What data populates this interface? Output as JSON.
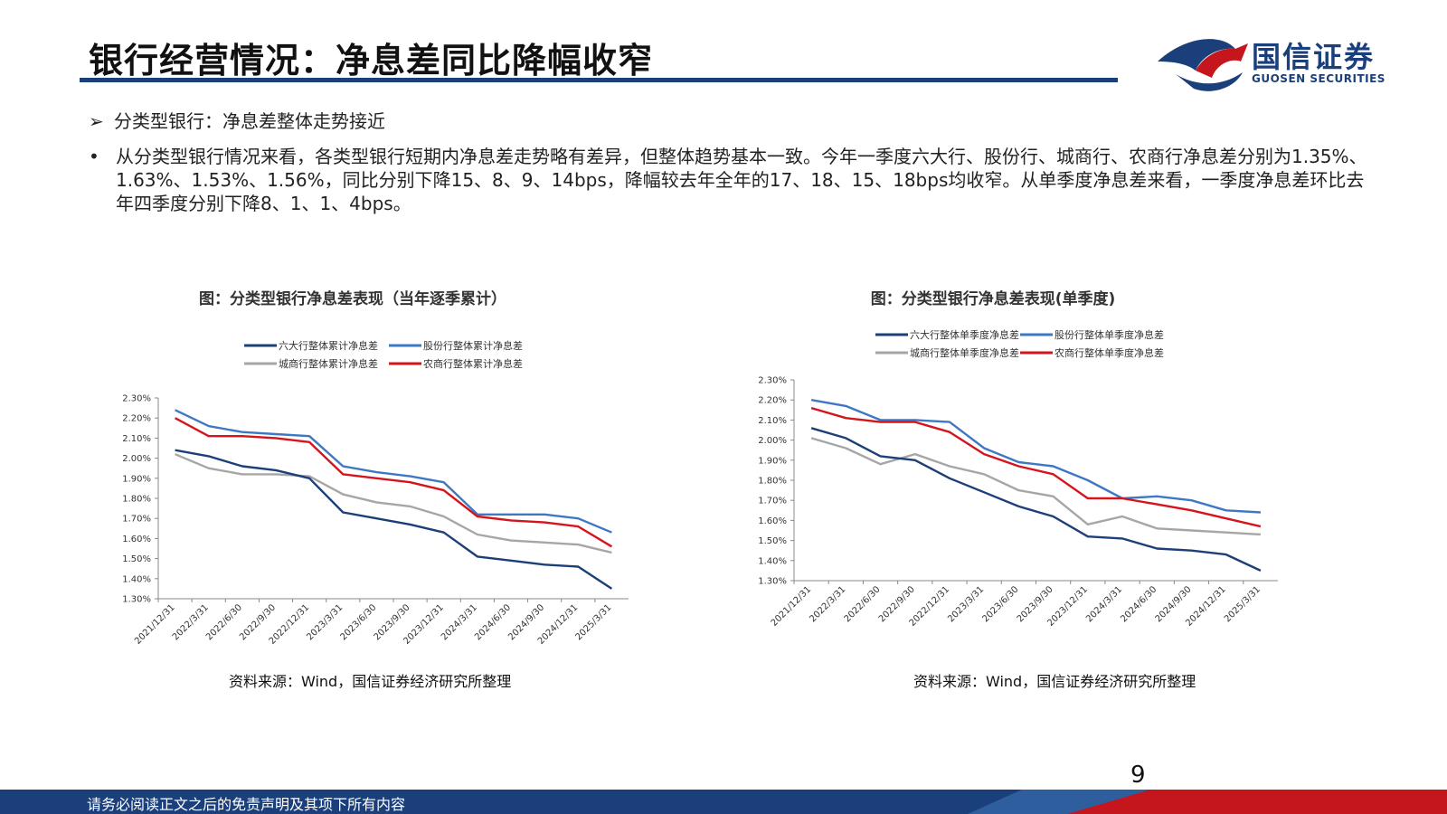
{
  "header": {
    "title": "银行经营情况：净息差同比降幅收窄",
    "logo_cn": "国信证券",
    "logo_en": "GUOSEN SECURITIES"
  },
  "bullets": {
    "b1_marker": "➢",
    "b1": "分类型银行：净息差整体走势接近",
    "b2_marker": "•",
    "b2": "从分类型银行情况来看，各类型银行短期内净息差走势略有差异，但整体趋势基本一致。今年一季度六大行、股份行、城商行、农商行净息差分别为1.35%、1.63%、1.53%、1.56%，同比分别下降15、8、9、14bps，降幅较去年全年的17、18、15、18bps均收窄。从单季度净息差来看，一季度净息差环比去年四季度分别下降8、1、1、4bps。"
  },
  "colors": {
    "navy": "#1a3f7a",
    "red": "#c4161c",
    "s1": "#1c3f78",
    "s2": "#3e78c4",
    "s3": "#a6a6a6",
    "s4": "#d5141c"
  },
  "chart_data": [
    {
      "type": "line",
      "title": "图：分类型银行净息差表现（当年逐季累计）",
      "x": [
        "2021/12/31",
        "2022/3/31",
        "2022/6/30",
        "2022/9/30",
        "2022/12/31",
        "2023/3/31",
        "2023/6/30",
        "2023/9/30",
        "2023/12/31",
        "2024/3/31",
        "2024/6/30",
        "2024/9/30",
        "2024/12/31",
        "2025/3/31"
      ],
      "ylim": [
        1.3,
        2.3
      ],
      "yticks": [
        "1.30%",
        "1.40%",
        "1.50%",
        "1.60%",
        "1.70%",
        "1.80%",
        "1.90%",
        "2.00%",
        "2.10%",
        "2.20%",
        "2.30%"
      ],
      "series": [
        {
          "name": "六大行整体累计净息差",
          "color": "#1c3f78",
          "values": [
            2.04,
            2.01,
            1.96,
            1.94,
            1.9,
            1.73,
            1.7,
            1.67,
            1.63,
            1.51,
            1.49,
            1.47,
            1.46,
            1.35
          ]
        },
        {
          "name": "股份行整体累计净息差",
          "color": "#3e78c4",
          "values": [
            2.24,
            2.16,
            2.13,
            2.12,
            2.11,
            1.96,
            1.93,
            1.91,
            1.88,
            1.72,
            1.72,
            1.72,
            1.7,
            1.63
          ]
        },
        {
          "name": "城商行整体累计净息差",
          "color": "#a6a6a6",
          "values": [
            2.02,
            1.95,
            1.92,
            1.92,
            1.91,
            1.82,
            1.78,
            1.76,
            1.71,
            1.62,
            1.59,
            1.58,
            1.57,
            1.53
          ]
        },
        {
          "name": "农商行整体累计净息差",
          "color": "#d5141c",
          "values": [
            2.2,
            2.11,
            2.11,
            2.1,
            2.08,
            1.92,
            1.9,
            1.88,
            1.84,
            1.71,
            1.69,
            1.68,
            1.66,
            1.56
          ]
        }
      ],
      "legend": "top",
      "source": "资料来源：Wind，国信证券经济研究所整理"
    },
    {
      "type": "line",
      "title": "图：分类型银行净息差表现(单季度)",
      "x": [
        "2021/12/31",
        "2022/3/31",
        "2022/6/30",
        "2022/9/30",
        "2022/12/31",
        "2023/3/31",
        "2023/6/30",
        "2023/9/30",
        "2023/12/31",
        "2024/3/31",
        "2024/6/30",
        "2024/9/30",
        "2024/12/31",
        "2025/3/31"
      ],
      "ylim": [
        1.3,
        2.3
      ],
      "yticks": [
        "1.30%",
        "1.40%",
        "1.50%",
        "1.60%",
        "1.70%",
        "1.80%",
        "1.90%",
        "2.00%",
        "2.10%",
        "2.20%",
        "2.30%"
      ],
      "series": [
        {
          "name": "六大行整体单季度净息差",
          "color": "#1c3f78",
          "values": [
            2.06,
            2.01,
            1.92,
            1.9,
            1.81,
            1.74,
            1.67,
            1.62,
            1.52,
            1.51,
            1.46,
            1.45,
            1.43,
            1.35
          ]
        },
        {
          "name": "股份行整体单季度净息差",
          "color": "#3e78c4",
          "values": [
            2.2,
            2.17,
            2.1,
            2.1,
            2.09,
            1.96,
            1.89,
            1.87,
            1.8,
            1.71,
            1.72,
            1.7,
            1.65,
            1.64
          ]
        },
        {
          "name": "城商行整体单季度净息差",
          "color": "#a6a6a6",
          "values": [
            2.01,
            1.96,
            1.88,
            1.93,
            1.87,
            1.83,
            1.75,
            1.72,
            1.58,
            1.62,
            1.56,
            1.55,
            1.54,
            1.53
          ]
        },
        {
          "name": "农商行整体单季度净息差",
          "color": "#d5141c",
          "values": [
            2.16,
            2.11,
            2.09,
            2.09,
            2.04,
            1.93,
            1.87,
            1.83,
            1.71,
            1.71,
            1.68,
            1.65,
            1.61,
            1.57
          ]
        }
      ],
      "legend": "top",
      "source": "资料来源：Wind，国信证券经济研究所整理"
    }
  ],
  "page": {
    "number": "9",
    "footer": "请务必阅读正文之后的免责声明及其项下所有内容"
  }
}
